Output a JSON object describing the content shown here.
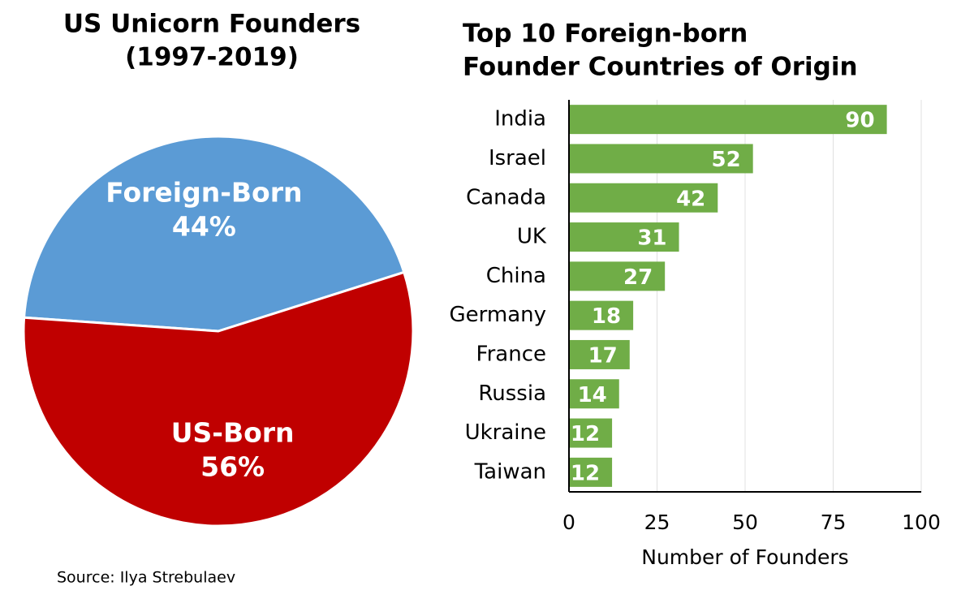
{
  "chart_data": [
    {
      "type": "pie",
      "title": [
        "US Unicorn Founders",
        "(1997-2019)"
      ],
      "categories": [
        "Foreign-Born",
        "US-Born"
      ],
      "values": [
        44,
        56
      ],
      "value_labels": [
        "44%",
        "56%"
      ],
      "colors": [
        "#5b9bd5",
        "#c00000"
      ]
    },
    {
      "type": "bar",
      "orientation": "horizontal",
      "title": [
        "Top 10 Foreign-born",
        "Founder Countries of Origin"
      ],
      "categories": [
        "India",
        "Israel",
        "Canada",
        "UK",
        "China",
        "Germany",
        "France",
        "Russia",
        "Ukraine",
        "Taiwan"
      ],
      "values": [
        90,
        52,
        42,
        31,
        27,
        18,
        17,
        14,
        12,
        12
      ],
      "color": "#70ad47",
      "xlim": [
        0,
        100
      ],
      "xticks": [
        0,
        25,
        50,
        75,
        100
      ],
      "xlabel": "Number of Founders",
      "grid": true
    }
  ],
  "source": "Source: Ilya Strebulaev"
}
